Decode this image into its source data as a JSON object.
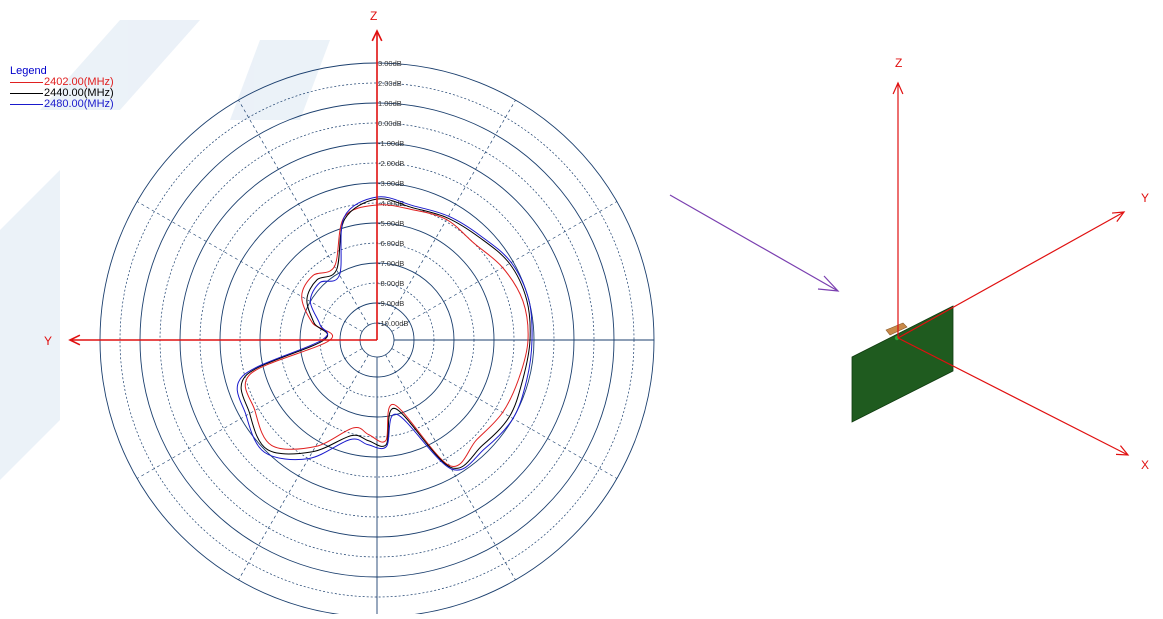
{
  "legend": {
    "title": "Legend",
    "items": [
      {
        "label": "2402.00(MHz)",
        "color": "#e02020"
      },
      {
        "label": "2440.00(MHz)",
        "color": "#000000"
      },
      {
        "label": "2480.00(MHz)",
        "color": "#1a1acc"
      }
    ]
  },
  "axes": {
    "polar_z": "Z",
    "polar_y": "Y",
    "board_z": "Z",
    "board_y": "Y",
    "board_x": "X"
  },
  "chart_data": {
    "type": "polar",
    "radial_unit": "dB",
    "radial_range": [
      -10,
      3
    ],
    "ring_labels": [
      "3.00dB",
      "2.00dB",
      "1.00dB",
      "0.00dB",
      "-1.00dB",
      "-2.00dB",
      "-3.00dB",
      "-4.00dB",
      "-5.00dB",
      "-6.00dB",
      "-7.00dB",
      "-8.00dB",
      "-9.00dB",
      "-10.00dB"
    ],
    "ring_values": [
      3,
      2,
      1,
      0,
      -1,
      -2,
      -3,
      -4,
      -5,
      -6,
      -7,
      -8,
      -9,
      -10
    ],
    "angle_step_deg": 30,
    "series": [
      {
        "name": "2402.00(MHz)",
        "color": "#e02020",
        "theta_deg": [
          0,
          15,
          30,
          45,
          60,
          75,
          90,
          105,
          120,
          135,
          150,
          165,
          175,
          185,
          195,
          210,
          225,
          240,
          255,
          270,
          285,
          300,
          315,
          330,
          345
        ],
        "gain_db": [
          -4.1,
          -4.1,
          -3.9,
          -4.0,
          -3.6,
          -3.3,
          -3.3,
          -3.5,
          -3.6,
          -3.8,
          -3.6,
          -7.5,
          -5.8,
          -6.1,
          -6.3,
          -4.7,
          -3.4,
          -3.8,
          -4.3,
          -8.5,
          -7.5,
          -6.5,
          -6.3,
          -6.6,
          -4.5
        ]
      },
      {
        "name": "2440.00(MHz)",
        "color": "#000000",
        "theta_deg": [
          0,
          15,
          30,
          45,
          60,
          75,
          90,
          105,
          120,
          135,
          150,
          165,
          175,
          185,
          195,
          210,
          225,
          240,
          255,
          270,
          285,
          300,
          315,
          330,
          345
        ],
        "gain_db": [
          -3.8,
          -4.0,
          -3.8,
          -3.6,
          -3.2,
          -3.1,
          -3.2,
          -3.3,
          -3.2,
          -3.4,
          -3.5,
          -7.3,
          -5.6,
          -5.8,
          -5.9,
          -4.4,
          -3.1,
          -3.5,
          -4.1,
          -8.2,
          -7.6,
          -6.8,
          -6.6,
          -6.8,
          -4.6
        ]
      },
      {
        "name": "2480.00(MHz)",
        "color": "#1a1acc",
        "theta_deg": [
          0,
          15,
          30,
          45,
          60,
          75,
          90,
          105,
          120,
          135,
          150,
          165,
          175,
          185,
          195,
          210,
          225,
          240,
          255,
          270,
          285,
          300,
          315,
          330,
          345
        ],
        "gain_db": [
          -3.7,
          -3.9,
          -3.7,
          -3.5,
          -3.1,
          -3.0,
          -3.1,
          -3.1,
          -3.0,
          -3.2,
          -3.4,
          -7.0,
          -5.5,
          -5.6,
          -5.7,
          -4.0,
          -2.9,
          -3.3,
          -3.9,
          -8.1,
          -7.9,
          -7.0,
          -6.8,
          -7.1,
          -4.5
        ]
      }
    ]
  },
  "colors": {
    "axis": "#e01010",
    "grid": "#1b3f6e",
    "pointer": "#7a3fb0",
    "board": "#1f5b1f",
    "board_edge": "#0e3a0e",
    "connector": "#c88a4a",
    "watermark": "#dbe7f3"
  }
}
